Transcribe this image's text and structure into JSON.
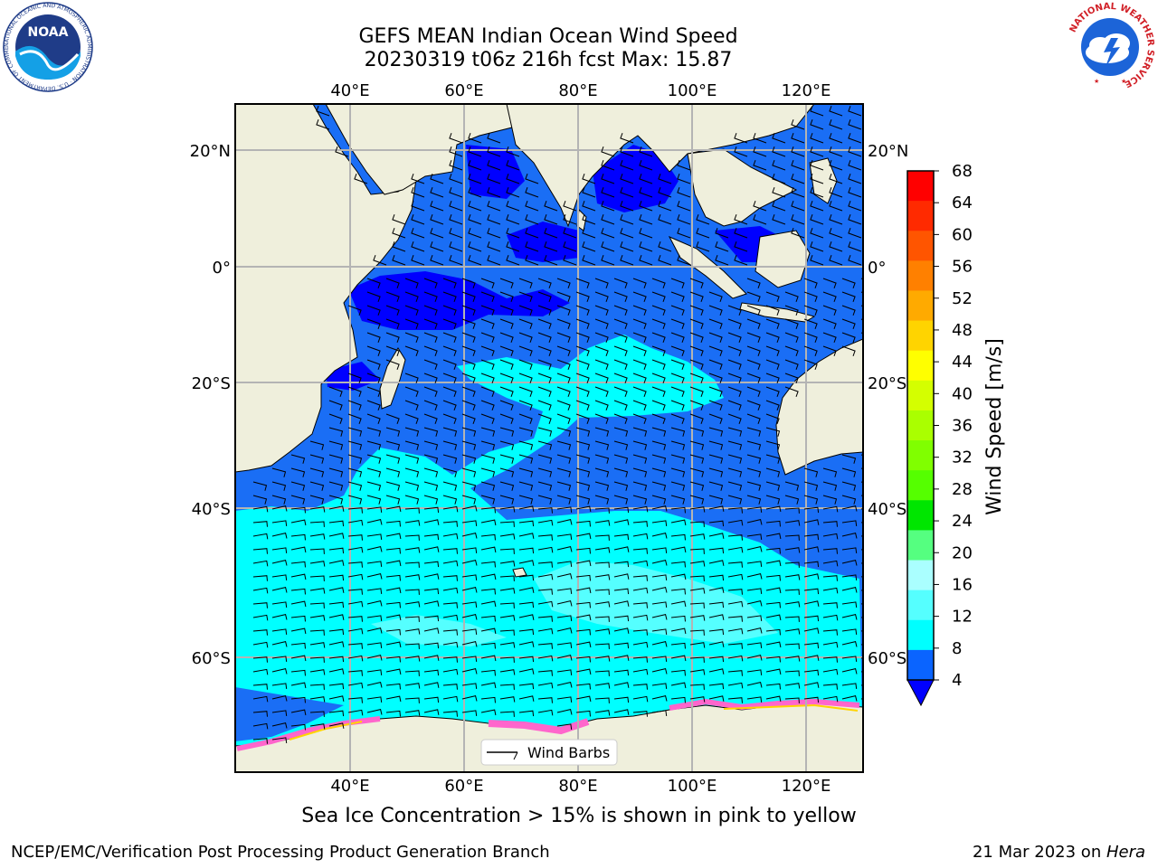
{
  "title": {
    "line1": "GEFS MEAN Indian Ocean Wind Speed",
    "line2": "20230319 t06z 216h fcst   Max: 15.87"
  },
  "map": {
    "lon_labels": [
      "40°E",
      "60°E",
      "80°E",
      "100°E",
      "120°E"
    ],
    "lat_labels": [
      "20°N",
      "0°",
      "20°S",
      "40°S",
      "60°S"
    ],
    "legend_label": "Wind Barbs"
  },
  "colorbar": {
    "label": "Wind Speed [m/s]",
    "ticks": [
      "68",
      "64",
      "60",
      "56",
      "52",
      "48",
      "44",
      "40",
      "36",
      "32",
      "28",
      "24",
      "20",
      "16",
      "12",
      "8",
      "4"
    ],
    "colors": [
      "#ff0000",
      "#ff2a00",
      "#ff5500",
      "#ff8000",
      "#ffaa00",
      "#ffd400",
      "#ffff00",
      "#d4ff00",
      "#aaff00",
      "#80ff00",
      "#55ff00",
      "#00e600",
      "#55ff80",
      "#aaffff",
      "#55ffff",
      "#00ffff",
      "#0a64ff"
    ],
    "under_color": "#0000ff"
  },
  "colors": {
    "land": "#efefdc",
    "ocean_base": "#1a6ef5",
    "ocean_dark": "#0000ff",
    "ocean_cyan": "#00ffff",
    "ocean_light": "#55ffff",
    "sea_ice": "#ff66cc"
  },
  "logos": {
    "noaa_text": "NOAA",
    "noaa_ring": "NATIONAL OCEANIC AND ATMOSPHERIC ADMINISTRATION · U.S. DEPARTMENT OF COMMERCE",
    "nws_ring": "NATIONAL WEATHER SERVICE"
  },
  "caption": "Sea Ice Concentration > 15% is shown in pink to yellow",
  "footer": {
    "left": "NCEP/EMC/Verification Post Processing Product Generation Branch",
    "right_date": "21 Mar 2023 on ",
    "right_host": "Hera"
  }
}
